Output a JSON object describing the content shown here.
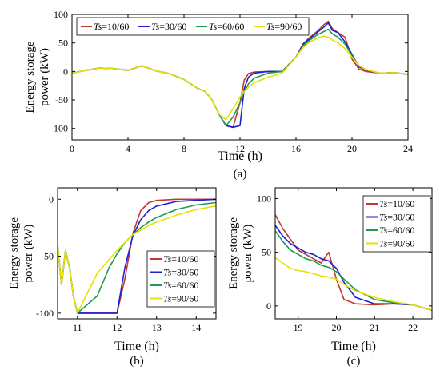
{
  "colors": {
    "Ts=10/60": "#c0392b",
    "Ts=30/60": "#1f1fd6",
    "Ts=60/60": "#1f9a4f",
    "Ts=90/60": "#e8e000"
  },
  "chart_data": [
    {
      "panel": "a",
      "type": "line",
      "caption": "(a)",
      "xlabel": "Time (h)",
      "ylabel": "Energy storage power (kW)",
      "xlim": [
        0,
        24
      ],
      "ylim": [
        -120,
        100
      ],
      "xticks": [
        0,
        4,
        8,
        12,
        16,
        20,
        24
      ],
      "yticks": [
        -100,
        -50,
        0,
        50,
        100
      ],
      "legend_position": "top-left",
      "series": [
        {
          "name": "Ts=10/60",
          "x": [
            0,
            1,
            2,
            3,
            4,
            5,
            6,
            7,
            8,
            9,
            9.5,
            10,
            10.5,
            11,
            11.5,
            12,
            12.3,
            12.6,
            13,
            14,
            15,
            16,
            16.5,
            17,
            17.5,
            18,
            18.3,
            18.6,
            19,
            19.5,
            20,
            20.5,
            21,
            22,
            23,
            24
          ],
          "y": [
            -3,
            2,
            6,
            5,
            2,
            10,
            1,
            -4,
            -14,
            -30,
            -35,
            -50,
            -75,
            -95,
            -98,
            -55,
            -15,
            -4,
            -1,
            0,
            0,
            25,
            48,
            60,
            70,
            82,
            88,
            75,
            68,
            60,
            22,
            4,
            0,
            -3,
            -2,
            -5
          ]
        },
        {
          "name": "Ts=30/60",
          "x": [
            0,
            1,
            2,
            3,
            4,
            5,
            6,
            7,
            8,
            9,
            9.5,
            10,
            10.5,
            11,
            11.5,
            12,
            12.3,
            12.6,
            13,
            14,
            15,
            16,
            16.5,
            17,
            17.5,
            18,
            18.3,
            18.6,
            19,
            19.5,
            20,
            20.5,
            21,
            22,
            23,
            24
          ],
          "y": [
            -3,
            2,
            6,
            5,
            2,
            10,
            1,
            -4,
            -14,
            -30,
            -35,
            -50,
            -75,
            -95,
            -98,
            -95,
            -30,
            -10,
            -3,
            0,
            0,
            25,
            48,
            58,
            68,
            78,
            85,
            72,
            68,
            52,
            30,
            8,
            2,
            -3,
            -2,
            -5
          ]
        },
        {
          "name": "Ts=60/60",
          "x": [
            0,
            1,
            2,
            3,
            4,
            5,
            6,
            7,
            8,
            9,
            9.5,
            10,
            10.5,
            11,
            11.5,
            12,
            12.3,
            12.6,
            13,
            14,
            15,
            16,
            16.5,
            17,
            17.5,
            18,
            18.3,
            18.6,
            19,
            19.5,
            20,
            20.5,
            21,
            22,
            23,
            24
          ],
          "y": [
            -3,
            2,
            6,
            5,
            2,
            10,
            1,
            -4,
            -14,
            -30,
            -35,
            -50,
            -75,
            -95,
            -80,
            -55,
            -35,
            -22,
            -12,
            -3,
            0,
            25,
            45,
            55,
            64,
            70,
            74,
            66,
            60,
            48,
            28,
            10,
            3,
            -3,
            -2,
            -5
          ]
        },
        {
          "name": "Ts=90/60",
          "x": [
            0,
            1,
            2,
            3,
            4,
            5,
            6,
            7,
            8,
            9,
            9.5,
            10,
            10.5,
            11,
            11.5,
            12,
            12.3,
            12.6,
            13,
            14,
            15,
            16,
            16.5,
            17,
            17.5,
            18,
            18.3,
            18.6,
            19,
            19.5,
            20,
            20.5,
            21,
            22,
            23,
            24
          ],
          "y": [
            -3,
            2,
            6,
            5,
            2,
            10,
            1,
            -4,
            -14,
            -30,
            -35,
            -50,
            -75,
            -85,
            -65,
            -45,
            -35,
            -28,
            -20,
            -10,
            -3,
            25,
            42,
            52,
            58,
            62,
            60,
            55,
            50,
            40,
            25,
            10,
            3,
            -3,
            -2,
            -5
          ]
        }
      ]
    },
    {
      "panel": "b",
      "type": "line",
      "caption": "(b)",
      "xlabel": "Time (h)",
      "ylabel": "Energy storage power (kW)",
      "xlim": [
        10.5,
        14.5
      ],
      "ylim": [
        -105,
        10
      ],
      "xticks": [
        11,
        12,
        13,
        14
      ],
      "yticks": [
        -100,
        -50,
        0
      ],
      "legend_position": "right",
      "series": [
        {
          "name": "Ts=10/60",
          "x": [
            10.5,
            10.6,
            10.7,
            10.8,
            10.9,
            11,
            11.5,
            12,
            12.2,
            12.4,
            12.6,
            12.8,
            13,
            13.5,
            14,
            14.5
          ],
          "y": [
            -40,
            -75,
            -45,
            -60,
            -85,
            -100,
            -100,
            -100,
            -70,
            -30,
            -10,
            -3,
            -1,
            0,
            0,
            0
          ]
        },
        {
          "name": "Ts=30/60",
          "x": [
            10.5,
            10.6,
            10.7,
            10.8,
            10.9,
            11,
            11.5,
            12,
            12.2,
            12.4,
            12.6,
            12.8,
            13,
            13.5,
            14,
            14.5
          ],
          "y": [
            -40,
            -75,
            -45,
            -60,
            -85,
            -100,
            -100,
            -100,
            -60,
            -32,
            -18,
            -10,
            -6,
            -2,
            -1,
            0
          ]
        },
        {
          "name": "Ts=60/60",
          "x": [
            10.5,
            10.6,
            10.7,
            10.8,
            10.9,
            11,
            11.5,
            11.8,
            12,
            12.2,
            12.4,
            12.6,
            12.8,
            13,
            13.5,
            14,
            14.5
          ],
          "y": [
            -40,
            -75,
            -45,
            -60,
            -85,
            -100,
            -85,
            -60,
            -48,
            -38,
            -31,
            -25,
            -20,
            -16,
            -9,
            -5,
            -3
          ]
        },
        {
          "name": "Ts=90/60",
          "x": [
            10.5,
            10.6,
            10.7,
            10.8,
            10.9,
            11,
            11.5,
            12,
            12.2,
            12.4,
            12.6,
            12.8,
            13,
            13.5,
            14,
            14.5
          ],
          "y": [
            -40,
            -75,
            -45,
            -60,
            -85,
            -100,
            -65,
            -45,
            -38,
            -31,
            -27,
            -23,
            -20,
            -14,
            -9,
            -6
          ]
        }
      ]
    },
    {
      "panel": "c",
      "type": "line",
      "caption": "(c)",
      "xlabel": "Time (h)",
      "ylabel": "Energy storage power (kW)",
      "xlim": [
        18.4,
        22.5
      ],
      "ylim": [
        -12,
        110
      ],
      "xticks": [
        19,
        20,
        21,
        22
      ],
      "yticks": [
        0,
        50,
        100
      ],
      "legend_position": "top-right",
      "series": [
        {
          "name": "Ts=10/60",
          "x": [
            18.4,
            18.6,
            18.8,
            19,
            19.2,
            19.4,
            19.6,
            19.8,
            20,
            20.2,
            20.5,
            21,
            21.5,
            22,
            22.5
          ],
          "y": [
            85,
            72,
            62,
            52,
            48,
            44,
            40,
            50,
            25,
            6,
            2,
            1,
            2,
            1,
            -4
          ]
        },
        {
          "name": "Ts=30/60",
          "x": [
            18.4,
            18.6,
            18.8,
            19,
            19.2,
            19.4,
            19.6,
            19.8,
            20,
            20.2,
            20.5,
            21,
            21.5,
            22,
            22.5
          ],
          "y": [
            75,
            65,
            58,
            54,
            50,
            48,
            44,
            42,
            35,
            22,
            8,
            2,
            2,
            1,
            -4
          ]
        },
        {
          "name": "Ts=60/60",
          "x": [
            18.4,
            18.6,
            18.8,
            19,
            19.2,
            19.4,
            19.6,
            19.8,
            20,
            20.2,
            20.5,
            21,
            21.5,
            22,
            22.5
          ],
          "y": [
            70,
            60,
            52,
            48,
            44,
            42,
            38,
            36,
            32,
            25,
            15,
            6,
            3,
            1,
            -4
          ]
        },
        {
          "name": "Ts=90/60",
          "x": [
            18.4,
            18.6,
            18.8,
            19,
            19.2,
            19.4,
            19.6,
            19.8,
            20,
            20.2,
            20.5,
            21,
            21.5,
            22,
            22.5
          ],
          "y": [
            45,
            40,
            35,
            33,
            32,
            30,
            28,
            27,
            25,
            20,
            14,
            8,
            4,
            1,
            -4
          ]
        }
      ]
    }
  ]
}
